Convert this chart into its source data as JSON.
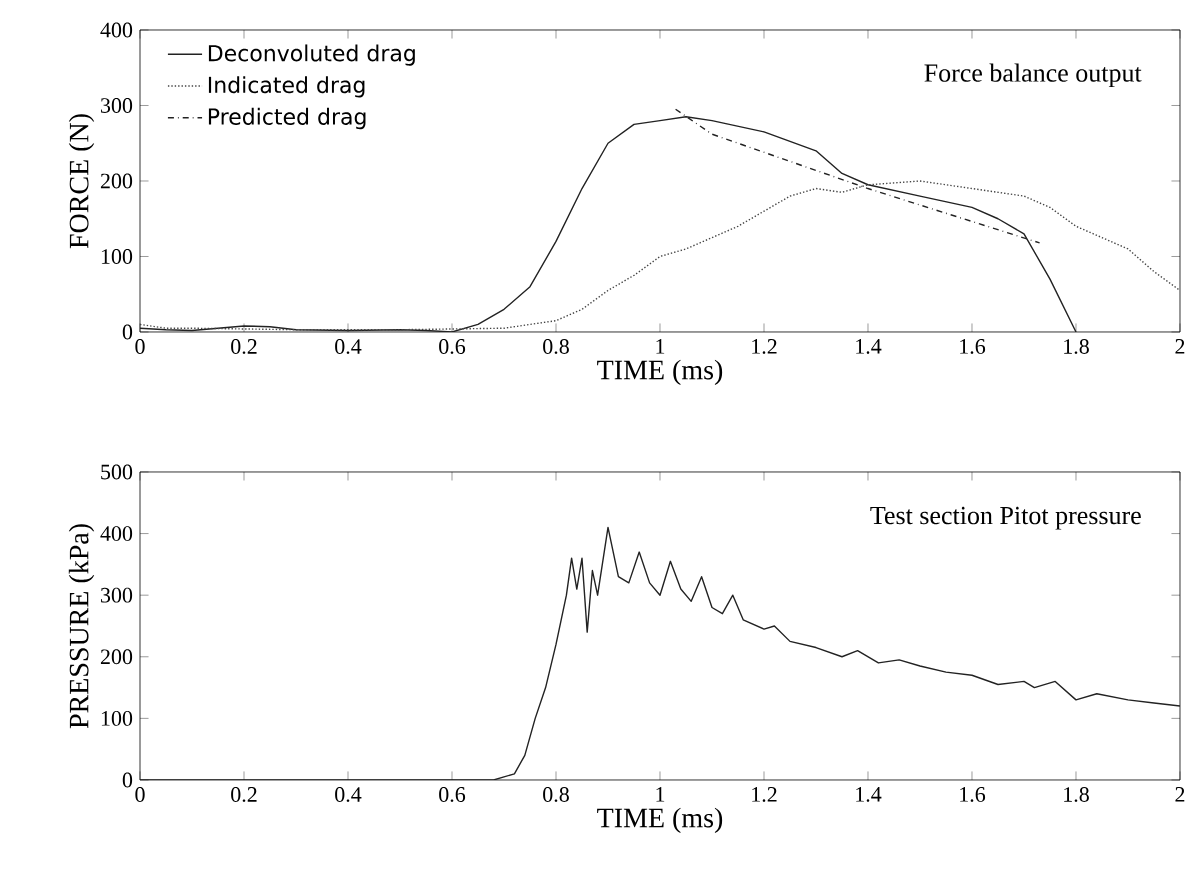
{
  "chart_data": [
    {
      "type": "line",
      "xlabel": "TIME (ms)",
      "ylabel": "FORCE (N)",
      "xlim": [
        0,
        2
      ],
      "ylim": [
        0,
        400
      ],
      "xticks": [
        0,
        0.2,
        0.4,
        0.6,
        0.8,
        1,
        1.2,
        1.4,
        1.6,
        1.8,
        2
      ],
      "yticks": [
        0,
        100,
        200,
        300,
        400
      ],
      "legend": "top left",
      "marker": "none",
      "grid": false,
      "annotations": [
        "Force balance output"
      ],
      "series": [
        {
          "name": "Deconvoluted drag",
          "color": "#222222",
          "line_style": "solid",
          "x": [
            0,
            0.05,
            0.1,
            0.15,
            0.2,
            0.25,
            0.3,
            0.4,
            0.5,
            0.55,
            0.6,
            0.65,
            0.7,
            0.75,
            0.8,
            0.85,
            0.9,
            0.95,
            1.0,
            1.05,
            1.1,
            1.2,
            1.3,
            1.35,
            1.4,
            1.5,
            1.6,
            1.65,
            1.7,
            1.75,
            1.8
          ],
          "values": [
            5,
            3,
            2,
            5,
            8,
            7,
            3,
            2,
            3,
            2,
            0,
            10,
            30,
            60,
            120,
            190,
            250,
            275,
            280,
            285,
            280,
            265,
            240,
            210,
            195,
            180,
            165,
            150,
            130,
            70,
            0
          ]
        },
        {
          "name": "Indicated drag",
          "color": "#444444",
          "line_style": "dotted",
          "x": [
            0,
            0.05,
            0.1,
            0.3,
            0.5,
            0.7,
            0.8,
            0.85,
            0.9,
            0.95,
            1.0,
            1.05,
            1.1,
            1.15,
            1.2,
            1.25,
            1.3,
            1.35,
            1.4,
            1.5,
            1.6,
            1.7,
            1.75,
            1.8,
            1.85,
            1.9,
            1.95,
            2.0
          ],
          "values": [
            10,
            5,
            5,
            3,
            3,
            5,
            15,
            30,
            55,
            75,
            100,
            110,
            125,
            140,
            160,
            180,
            190,
            185,
            195,
            200,
            190,
            180,
            165,
            140,
            125,
            110,
            80,
            55
          ]
        },
        {
          "name": "Predicted drag",
          "color": "#222222",
          "line_style": "dashdot",
          "x": [
            1.03,
            1.1,
            1.4,
            1.73
          ],
          "values": [
            295,
            262,
            190,
            118
          ]
        }
      ]
    },
    {
      "type": "line",
      "xlabel": "TIME (ms)",
      "ylabel": "PRESSURE (kPa)",
      "xlim": [
        0,
        2
      ],
      "ylim": [
        0,
        500
      ],
      "xticks": [
        0,
        0.2,
        0.4,
        0.6,
        0.8,
        1,
        1.2,
        1.4,
        1.6,
        1.8,
        2
      ],
      "yticks": [
        0,
        100,
        200,
        300,
        400,
        500
      ],
      "legend": false,
      "marker": "none",
      "grid": false,
      "annotations": [
        "Test section Pitot pressure"
      ],
      "series": [
        {
          "color": "#222222",
          "line_style": "solid",
          "x": [
            0,
            0.68,
            0.7,
            0.72,
            0.74,
            0.76,
            0.78,
            0.8,
            0.82,
            0.83,
            0.84,
            0.85,
            0.86,
            0.87,
            0.88,
            0.9,
            0.92,
            0.94,
            0.96,
            0.98,
            1.0,
            1.02,
            1.04,
            1.06,
            1.08,
            1.1,
            1.12,
            1.14,
            1.16,
            1.2,
            1.22,
            1.25,
            1.3,
            1.35,
            1.38,
            1.42,
            1.46,
            1.5,
            1.55,
            1.6,
            1.65,
            1.7,
            1.72,
            1.76,
            1.8,
            1.84,
            1.9,
            1.95,
            2.0
          ],
          "values": [
            0,
            0,
            5,
            10,
            40,
            100,
            150,
            220,
            300,
            360,
            310,
            360,
            240,
            340,
            300,
            410,
            330,
            320,
            370,
            320,
            300,
            355,
            310,
            290,
            330,
            280,
            270,
            300,
            260,
            245,
            250,
            225,
            215,
            200,
            210,
            190,
            195,
            185,
            175,
            170,
            155,
            160,
            150,
            160,
            130,
            140,
            130,
            125,
            120
          ]
        }
      ]
    }
  ]
}
